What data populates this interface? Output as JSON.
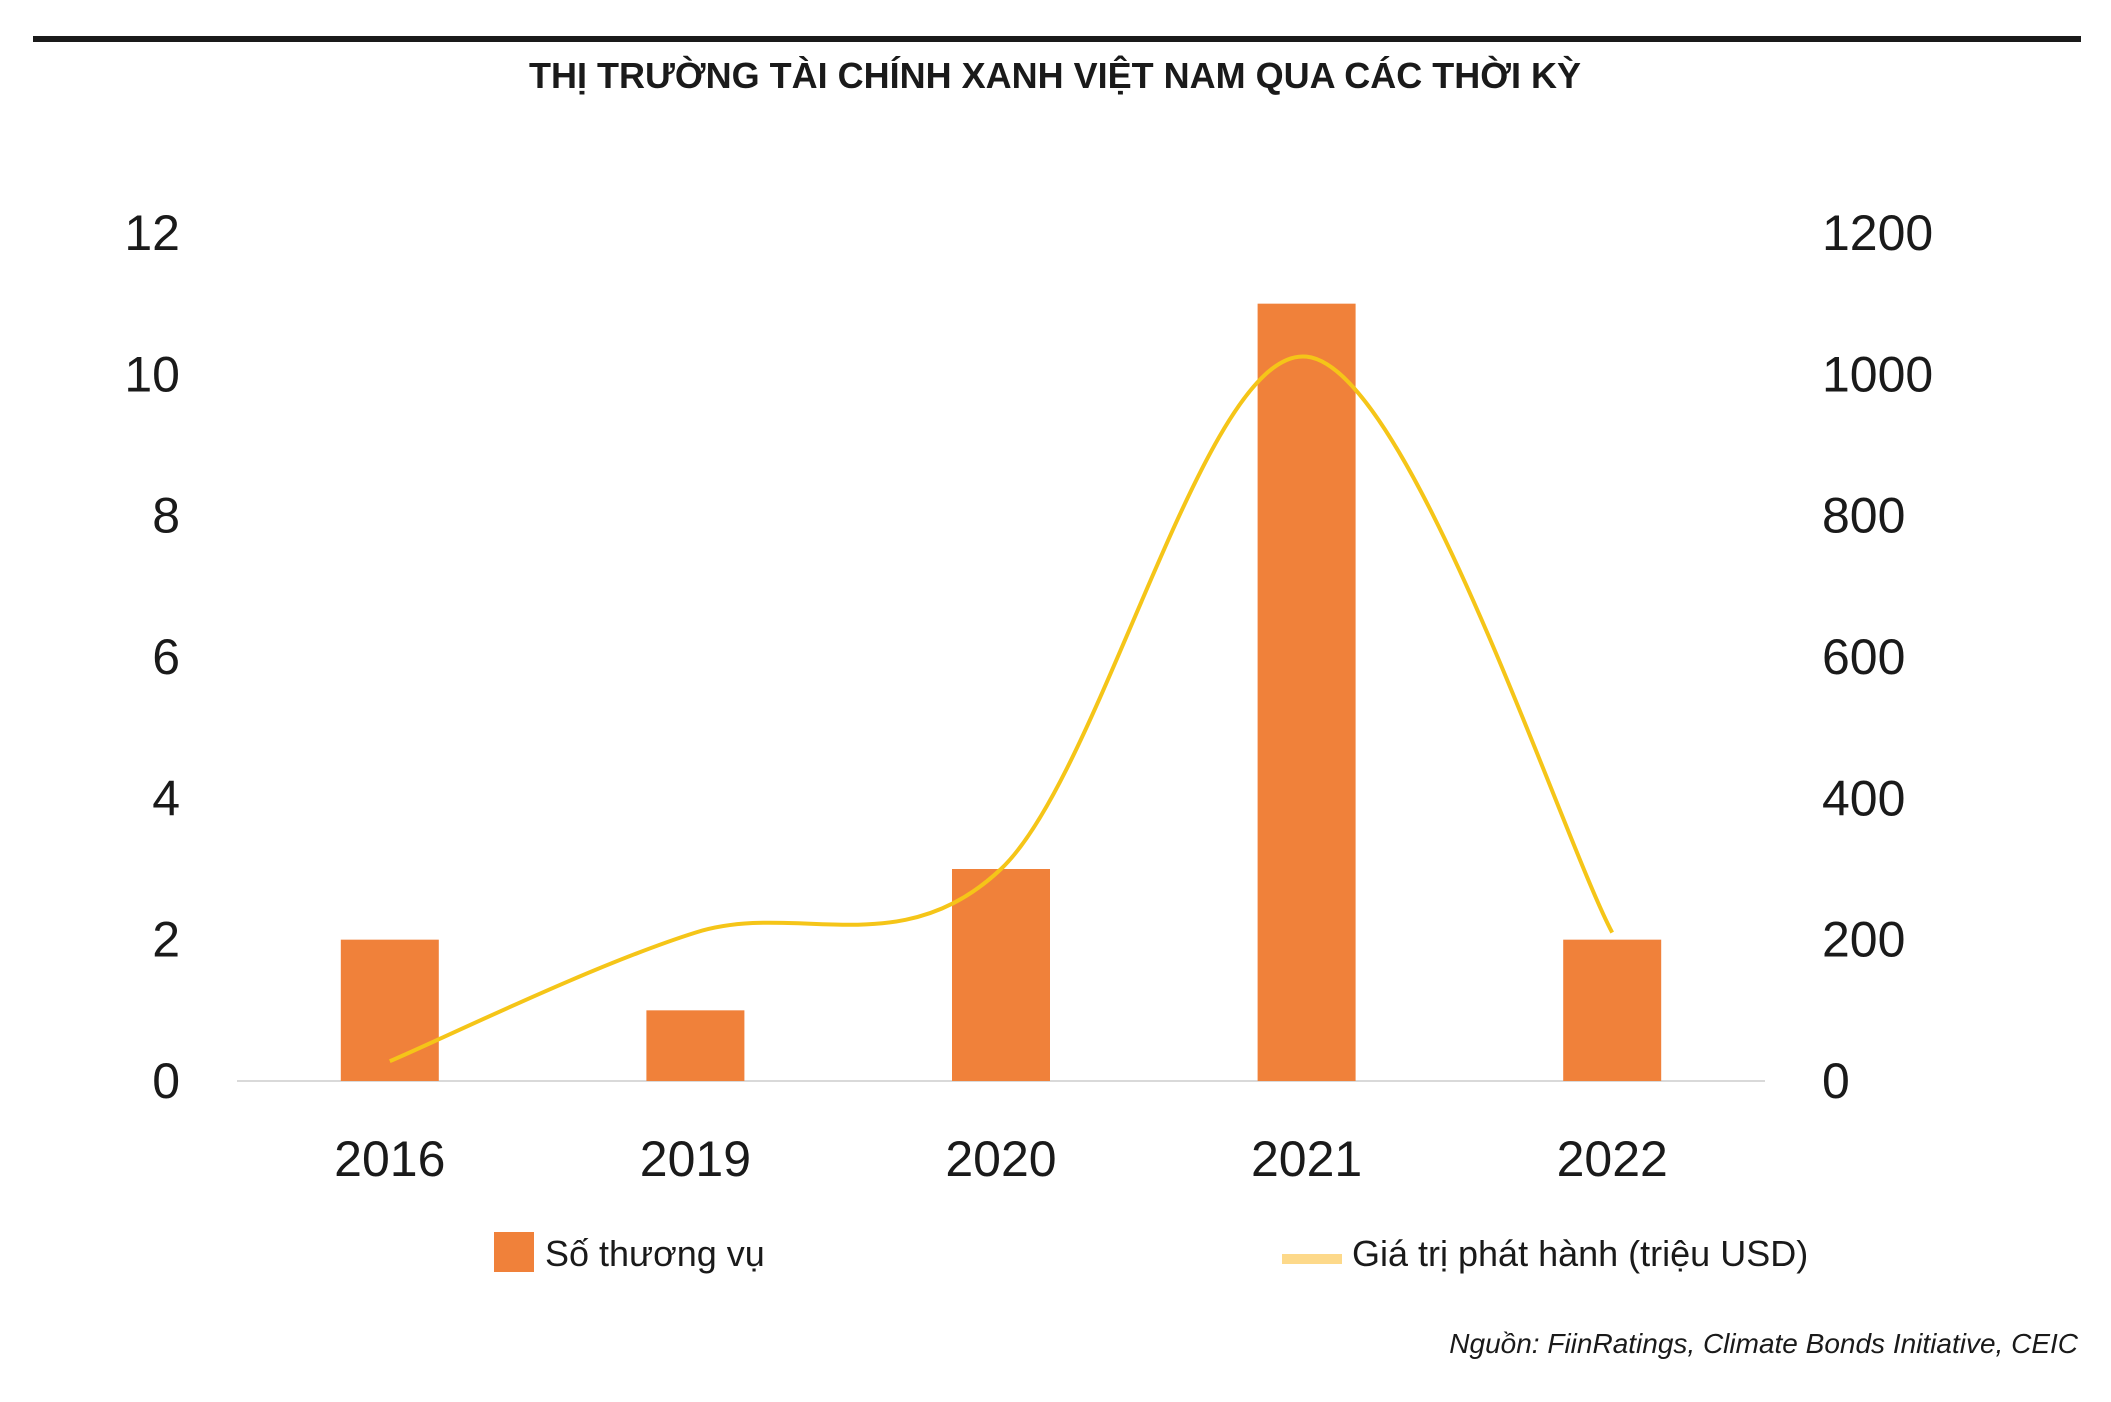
{
  "chart_data": {
    "type": "bar",
    "title": "THỊ TRƯỜNG TÀI CHÍNH XANH VIỆT NAM QUA CÁC THỜI KỲ",
    "categories": [
      "2016",
      "2019",
      "2020",
      "2021",
      "2022"
    ],
    "series": [
      {
        "name": "Số thương vụ",
        "type": "bar",
        "axis": "left",
        "color": "#F0813A",
        "values": [
          2,
          1,
          3,
          11,
          2
        ]
      },
      {
        "name": "Giá trị phát hành (triệu USD)",
        "type": "line",
        "axis": "right",
        "color": "#F5C518",
        "values": [
          28,
          210,
          300,
          1025,
          210
        ]
      }
    ],
    "y_left": {
      "lim": [
        0,
        12
      ],
      "ticks": [
        "0",
        "2",
        "4",
        "6",
        "8",
        "10",
        "12"
      ]
    },
    "y_right": {
      "lim": [
        0,
        1200
      ],
      "ticks": [
        "0",
        "200",
        "400",
        "600",
        "800",
        "1000",
        "1200"
      ]
    },
    "grid": false,
    "legend_position": "bottom"
  },
  "source": "Nguồn: FiinRatings, Climate Bonds Initiative, CEIC"
}
